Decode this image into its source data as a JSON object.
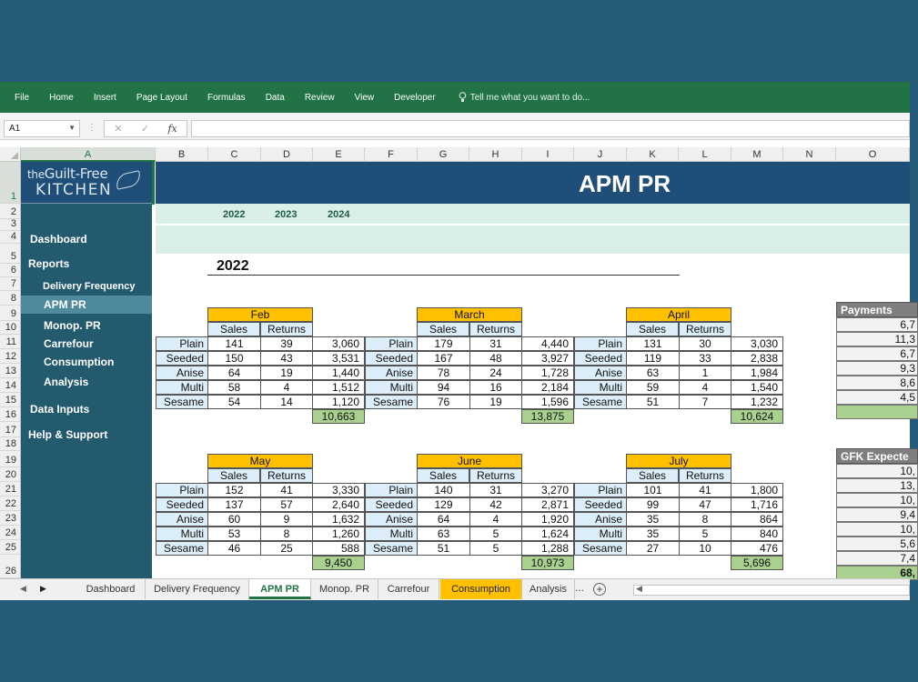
{
  "ribbon": {
    "tabs": [
      "File",
      "Home",
      "Insert",
      "Page Layout",
      "Formulas",
      "Data",
      "Review",
      "View",
      "Developer"
    ],
    "tell_me": "Tell me what you want to do..."
  },
  "formula_bar": {
    "name_box": "A1",
    "cancel": "✕",
    "enter": "✓",
    "fx": "fx",
    "value": ""
  },
  "columns": [
    "A",
    "B",
    "C",
    "D",
    "E",
    "F",
    "G",
    "H",
    "I",
    "J",
    "K",
    "L",
    "M",
    "N",
    "O"
  ],
  "rows": [
    "1",
    "2",
    "3",
    "4",
    "5",
    "6",
    "7",
    "8",
    "9",
    "10",
    "11",
    "12",
    "13",
    "14",
    "15",
    "16",
    "17",
    "18",
    "19",
    "20",
    "21",
    "22",
    "23",
    "24",
    "25",
    "26"
  ],
  "sidebar": {
    "logo_line1_a": "the",
    "logo_line1_b": "Guilt-Free",
    "logo_line2": "KITCHEN",
    "items": [
      {
        "label": "Dashboard"
      },
      {
        "label": "Reports"
      },
      {
        "label": "Delivery Frequency"
      },
      {
        "label": "APM PR"
      },
      {
        "label": "Monop. PR"
      },
      {
        "label": "Carrefour"
      },
      {
        "label": "Consumption"
      },
      {
        "label": "Analysis"
      },
      {
        "label": "Data Inputs"
      },
      {
        "label": "Help & Support"
      }
    ]
  },
  "header": {
    "title": "APM PR",
    "years": [
      "2022",
      "2023",
      "2024"
    ],
    "section_year": "2022"
  },
  "table_labels": {
    "sales": "Sales",
    "returns": "Returns"
  },
  "products": [
    "Plain",
    "Seeded",
    "Anise",
    "Multi",
    "Sesame"
  ],
  "months": [
    {
      "name": "Feb",
      "sales": [
        "141",
        "150",
        "64",
        "58",
        "54"
      ],
      "returns": [
        "39",
        "43",
        "19",
        "4",
        "14"
      ],
      "totals": [
        "3,060",
        "3,531",
        "1,440",
        "1,512",
        "1,120"
      ],
      "grand": "10,663"
    },
    {
      "name": "March",
      "sales": [
        "179",
        "167",
        "78",
        "94",
        "76"
      ],
      "returns": [
        "31",
        "48",
        "24",
        "16",
        "19"
      ],
      "totals": [
        "4,440",
        "3,927",
        "1,728",
        "2,184",
        "1,596"
      ],
      "grand": "13,875"
    },
    {
      "name": "April",
      "sales": [
        "131",
        "119",
        "63",
        "59",
        "51"
      ],
      "returns": [
        "30",
        "33",
        "1",
        "4",
        "7"
      ],
      "totals": [
        "3,030",
        "2,838",
        "1,984",
        "1,540",
        "1,232"
      ],
      "grand": "10,624"
    },
    {
      "name": "May",
      "sales": [
        "152",
        "137",
        "60",
        "53",
        "46"
      ],
      "returns": [
        "41",
        "57",
        "9",
        "8",
        "25"
      ],
      "totals": [
        "3,330",
        "2,640",
        "1,632",
        "1,260",
        "588"
      ],
      "grand": "9,450"
    },
    {
      "name": "June",
      "sales": [
        "140",
        "129",
        "64",
        "63",
        "51"
      ],
      "returns": [
        "31",
        "42",
        "4",
        "5",
        "5"
      ],
      "totals": [
        "3,270",
        "2,871",
        "1,920",
        "1,624",
        "1,288"
      ],
      "grand": "10,973"
    },
    {
      "name": "July",
      "sales": [
        "101",
        "99",
        "35",
        "35",
        "27"
      ],
      "returns": [
        "41",
        "47",
        "8",
        "5",
        "10"
      ],
      "totals": [
        "1,800",
        "1,716",
        "864",
        "840",
        "476"
      ],
      "grand": "5,696"
    }
  ],
  "payments": {
    "title": "Payments",
    "values": [
      "6,7",
      "11,3",
      "6,7",
      "9,3",
      "8,6",
      "4,5",
      ""
    ]
  },
  "expected": {
    "title": "GFK Expecte",
    "values": [
      "10,",
      "13,",
      "10,",
      "9,4",
      "10,",
      "5,6",
      "7,4",
      "68,"
    ]
  },
  "sheet_tabs": [
    "Dashboard",
    "Delivery Frequency",
    "APM PR",
    "Monop. PR",
    "Carrefour",
    "Consumption",
    "Analysis"
  ],
  "sheet_more": "...",
  "sheet_add": "+",
  "colors": {
    "excel_green": "#217346",
    "navy": "#1f4e79",
    "teal_sidebar": "#235a6e",
    "month_header": "#ffc000",
    "total_green": "#a9d08e"
  }
}
